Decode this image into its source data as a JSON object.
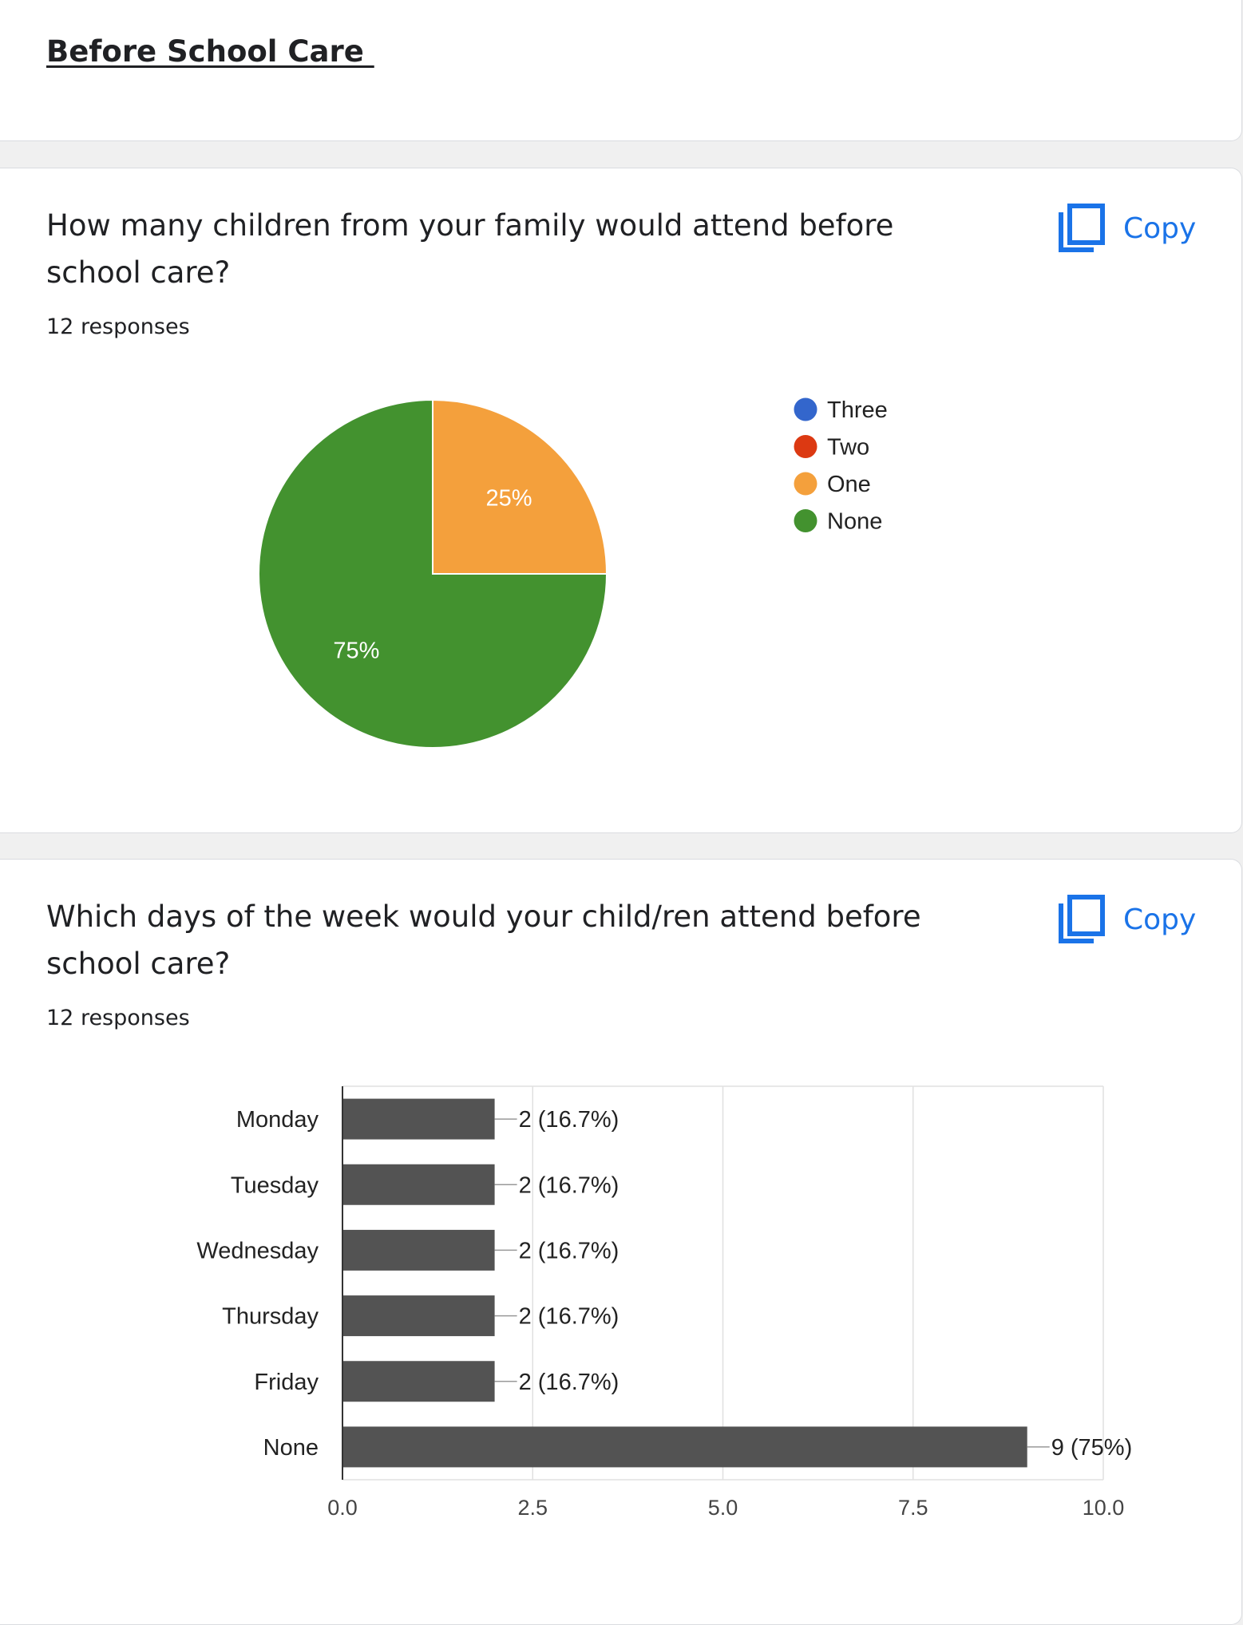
{
  "section": {
    "title": "Before School Care "
  },
  "questions": [
    {
      "title": "How many children from your family would attend before school care?",
      "responses": "12 responses",
      "copy_label": "Copy",
      "copy_icon": "copy-icon"
    },
    {
      "title": "Which days of the week would your child/ren attend before school care?",
      "responses": "12 responses",
      "copy_label": "Copy",
      "copy_icon": "copy-icon"
    }
  ],
  "chart_data": [
    {
      "type": "pie",
      "legend_position": "right",
      "slices": [
        {
          "label": "Three",
          "value": 0,
          "pct_label": "",
          "color": "#3366cc"
        },
        {
          "label": "Two",
          "value": 0,
          "pct_label": "",
          "color": "#dc3912"
        },
        {
          "label": "One",
          "value": 25,
          "pct_label": "25%",
          "color": "#f4a03c"
        },
        {
          "label": "None",
          "value": 75,
          "pct_label": "75%",
          "color": "#43922f"
        }
      ]
    },
    {
      "type": "bar",
      "orientation": "horizontal",
      "bar_color": "#535353",
      "categories": [
        "Monday",
        "Tuesday",
        "Wednesday",
        "Thursday",
        "Friday",
        "None"
      ],
      "values": [
        2,
        2,
        2,
        2,
        2,
        9
      ],
      "value_labels": [
        "2 (16.7%)",
        "2 (16.7%)",
        "2 (16.7%)",
        "2 (16.7%)",
        "2 (16.7%)",
        "9 (75%)"
      ],
      "xlim": [
        0,
        10
      ],
      "xticks": [
        0,
        2.5,
        5,
        7.5,
        10
      ],
      "xtick_labels": [
        "0.0",
        "2.5",
        "5.0",
        "7.5",
        "10.0"
      ],
      "grid": true
    }
  ]
}
